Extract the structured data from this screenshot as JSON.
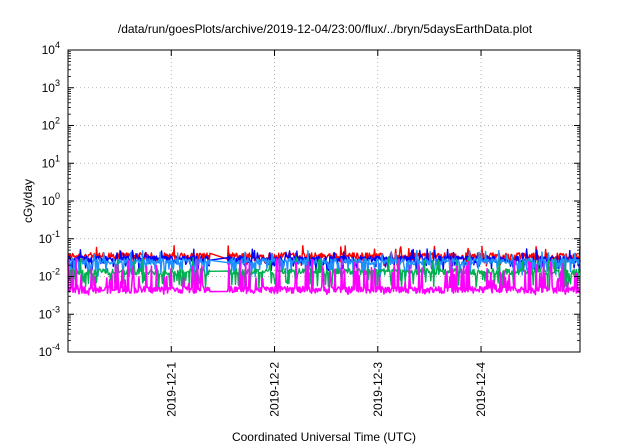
{
  "chart_data": {
    "type": "line",
    "title": "/data/run/goesPlots/archive/2019-12-04/23:00/flux/../bryn/5daysEarthData.plot",
    "xlabel": "Coordinated Universal Time (UTC)",
    "ylabel": "cGy/day",
    "y_scale": "log",
    "ylim": [
      0.0001,
      10000
    ],
    "xlim": [
      "2019-11-30T00:00",
      "2019-12-04T23:00"
    ],
    "y_ticks": [
      {
        "value": 0.0001,
        "base": "10",
        "exp": "-4"
      },
      {
        "value": 0.001,
        "base": "10",
        "exp": "-3"
      },
      {
        "value": 0.01,
        "base": "10",
        "exp": "-2"
      },
      {
        "value": 0.1,
        "base": "10",
        "exp": "-1"
      },
      {
        "value": 1,
        "base": "10",
        "exp": "0"
      },
      {
        "value": 10,
        "base": "10",
        "exp": "1"
      },
      {
        "value": 100,
        "base": "10",
        "exp": "2"
      },
      {
        "value": 1000,
        "base": "10",
        "exp": "3"
      },
      {
        "value": 10000,
        "base": "10",
        "exp": "4"
      }
    ],
    "x_ticks": [
      {
        "value": "2019-12-01T00:00",
        "label": "2019-12-1"
      },
      {
        "value": "2019-12-02T00:00",
        "label": "2019-12-2"
      },
      {
        "value": "2019-12-03T00:00",
        "label": "2019-12-3"
      },
      {
        "value": "2019-12-04T00:00",
        "label": "2019-12-4"
      }
    ],
    "grid": true,
    "data_gap": [
      "2019-12-01T09:00",
      "2019-12-01T13:00"
    ],
    "series": [
      {
        "color": "#ff0000",
        "base": 0.034,
        "peak": 0.06,
        "trough": 0.024
      },
      {
        "color": "#0000ff",
        "base": 0.028,
        "peak": 0.05,
        "trough": 0.018
      },
      {
        "color": "#1e90ff",
        "base": 0.024,
        "peak": 0.045,
        "trough": 0.012
      },
      {
        "color": "#00b050",
        "base": 0.013,
        "peak": 0.03,
        "trough": 0.006
      },
      {
        "color": "#ff00ff",
        "base": 0.0045,
        "peak": 0.03,
        "trough": 0.0033
      }
    ]
  }
}
